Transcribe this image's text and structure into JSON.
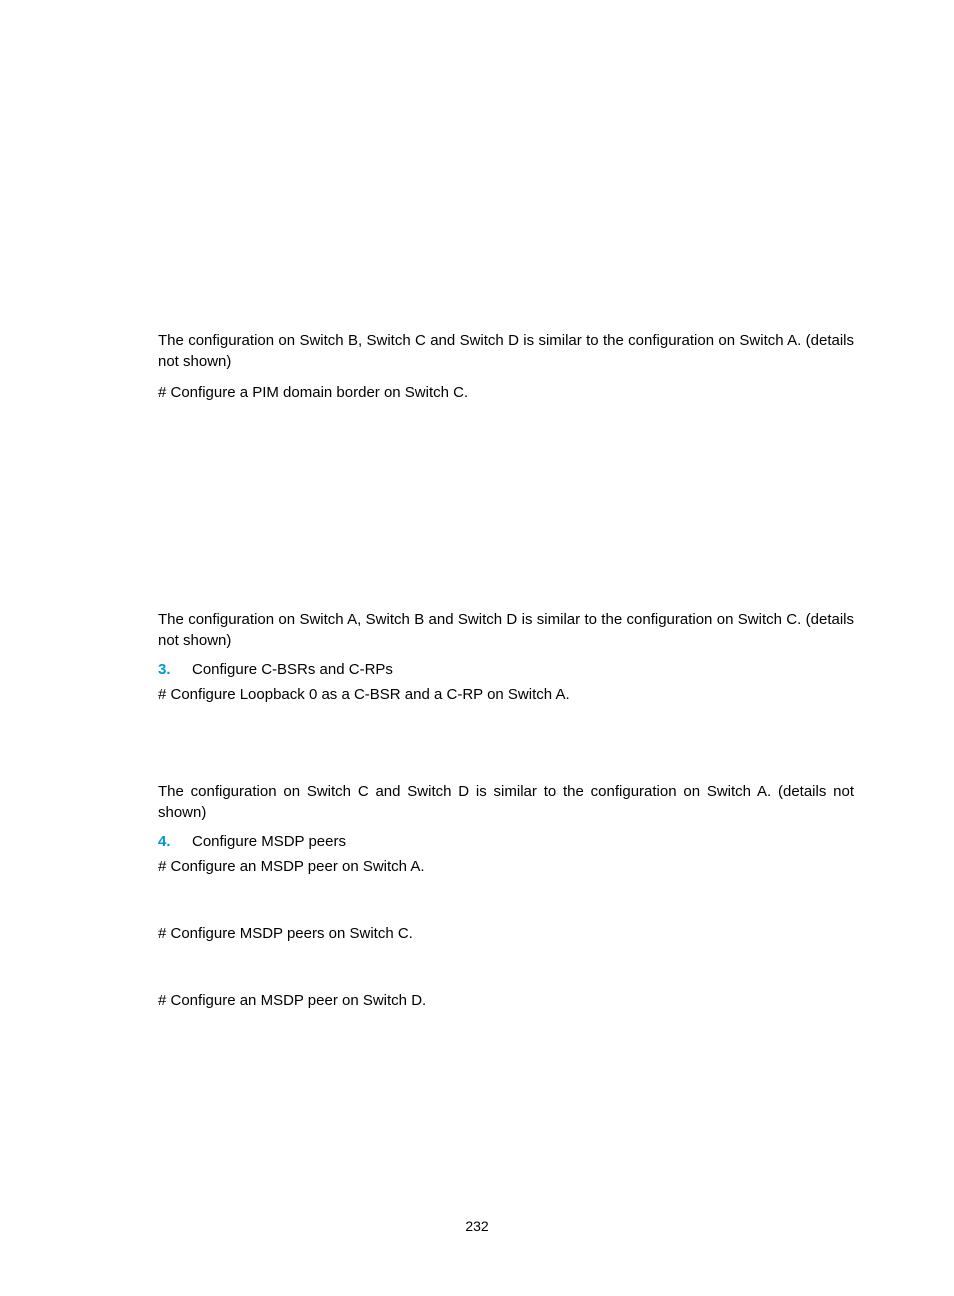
{
  "accent_color": "#0096d6",
  "text_color": "#000000",
  "background_color": "#ffffff",
  "font_family": "Arial, Helvetica, sans-serif",
  "body_font_size_pt": 11,
  "page_number": "232",
  "blocks": {
    "p1": "The configuration on Switch B, Switch C and Switch D is similar to the configuration on Switch A. (details not shown)",
    "h1": "# Configure a PIM domain border on Switch C.",
    "p2": "The configuration on Switch A, Switch B and Switch D is similar to the configuration on Switch C. (details not shown)",
    "step3_num": "3.",
    "step3_text": "Configure C-BSRs and C-RPs",
    "h2": "# Configure Loopback 0 as a C-BSR and a C-RP on Switch A.",
    "p3": "The configuration on Switch C and Switch D is similar to the configuration on Switch A. (details not shown)",
    "step4_num": "4.",
    "step4_text": "Configure MSDP peers",
    "h3": "# Configure an MSDP peer on Switch A.",
    "h4": "# Configure MSDP peers on Switch C.",
    "h5": "# Configure an MSDP peer on Switch D."
  }
}
